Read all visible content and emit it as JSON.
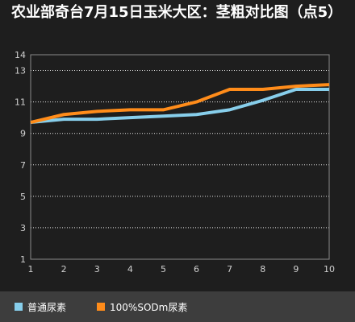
{
  "title": "农业部奇台7月15日玉米大区：茎粗对比图（点5）",
  "chart_data": {
    "type": "line",
    "x": [
      1,
      2,
      3,
      4,
      5,
      6,
      7,
      8,
      9,
      10
    ],
    "x_ticks": [
      "1",
      "2",
      "3",
      "4",
      "5",
      "6",
      "7",
      "8",
      "9",
      "10"
    ],
    "ylim": [
      1,
      14
    ],
    "y_ticks": [
      1,
      3,
      5,
      7,
      9,
      11,
      13,
      14
    ],
    "grid": true,
    "legend": "bottom",
    "series": [
      {
        "name": "普通尿素",
        "color": "#87ceeb",
        "values": [
          9.7,
          9.9,
          9.9,
          10.0,
          10.1,
          10.2,
          10.5,
          11.1,
          11.8,
          11.8
        ]
      },
      {
        "name": "100%SODm尿素",
        "color": "#ff8c1a",
        "values": [
          9.7,
          10.2,
          10.4,
          10.5,
          10.5,
          11.0,
          11.8,
          11.8,
          12.0,
          12.1
        ]
      }
    ]
  }
}
